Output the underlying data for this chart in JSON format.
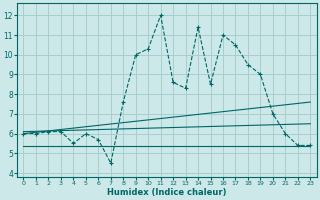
{
  "xlabel": "Humidex (Indice chaleur)",
  "background_color": "#cce8e8",
  "grid_color": "#a8cece",
  "line_color": "#006666",
  "xlim": [
    -0.5,
    23.5
  ],
  "ylim": [
    3.8,
    12.6
  ],
  "yticks": [
    4,
    5,
    6,
    7,
    8,
    9,
    10,
    11,
    12
  ],
  "xticks": [
    0,
    1,
    2,
    3,
    4,
    5,
    6,
    7,
    8,
    9,
    10,
    11,
    12,
    13,
    14,
    15,
    16,
    17,
    18,
    19,
    20,
    21,
    22,
    23
  ],
  "line1_x": [
    0,
    1,
    2,
    3,
    4,
    5,
    6,
    7,
    8,
    9,
    10,
    11,
    12,
    13,
    14,
    15,
    16,
    17,
    18,
    19,
    20,
    21,
    22,
    23
  ],
  "line1_y": [
    6.0,
    6.0,
    6.1,
    6.1,
    5.5,
    6.0,
    5.7,
    4.5,
    7.6,
    10.0,
    10.3,
    12.0,
    8.6,
    8.3,
    11.4,
    8.5,
    11.0,
    10.5,
    9.5,
    9.0,
    7.0,
    6.0,
    5.4,
    5.4
  ],
  "line2_x": [
    0,
    23
  ],
  "line2_y": [
    5.35,
    5.35
  ],
  "line3_x": [
    0,
    23
  ],
  "line3_y": [
    6.1,
    6.5
  ],
  "line4_x": [
    0,
    23
  ],
  "line4_y": [
    6.0,
    7.6
  ]
}
